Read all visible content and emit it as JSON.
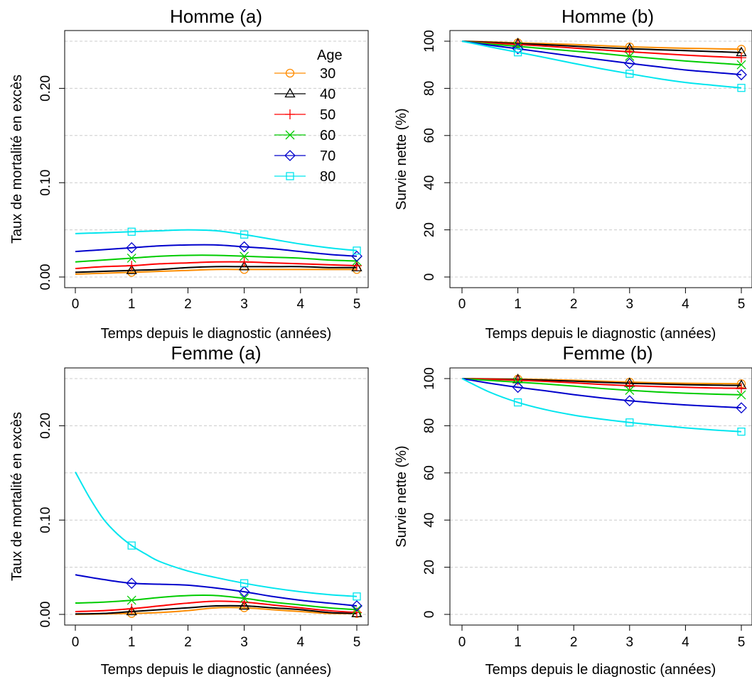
{
  "colors": {
    "30": "#ff8c00",
    "40": "#000000",
    "50": "#ff0000",
    "60": "#00cc00",
    "70": "#0000cc",
    "80": "#00e5ee"
  },
  "legend": {
    "title": "Age",
    "entries": [
      "30",
      "40",
      "50",
      "60",
      "70",
      "80"
    ]
  },
  "chart_data": [
    {
      "type": "line",
      "title": "Homme (a)",
      "xlabel": "Temps depuis le diagnostic (années)",
      "ylabel": "Taux de mortalité en excès",
      "xlim": [
        0,
        5
      ],
      "ylim": [
        0,
        0.25
      ],
      "xticks": [
        "0",
        "1",
        "2",
        "3",
        "4",
        "5"
      ],
      "yticks": [
        "0.00",
        "0.10",
        "0.20"
      ],
      "ytick_values": [
        0,
        0.1,
        0.2
      ],
      "grid_values": [
        0,
        0.05,
        0.1,
        0.15,
        0.2,
        0.25
      ],
      "legend_position": "top-right",
      "series": [
        {
          "name": "30",
          "marker": "circle",
          "x": [
            0,
            0.5,
            1,
            1.5,
            2,
            2.5,
            3,
            3.5,
            4,
            4.5,
            5
          ],
          "values": [
            0.003,
            0.004,
            0.005,
            0.006,
            0.007,
            0.008,
            0.008,
            0.008,
            0.008,
            0.008,
            0.008
          ],
          "marker_x": [
            1,
            3,
            5
          ]
        },
        {
          "name": "40",
          "marker": "triangle",
          "x": [
            0,
            0.5,
            1,
            1.5,
            2,
            2.5,
            3,
            3.5,
            4,
            4.5,
            5
          ],
          "values": [
            0.005,
            0.006,
            0.007,
            0.008,
            0.01,
            0.011,
            0.011,
            0.011,
            0.011,
            0.01,
            0.01
          ],
          "marker_x": [
            1,
            3,
            5
          ]
        },
        {
          "name": "50",
          "marker": "plus",
          "x": [
            0,
            0.5,
            1,
            1.5,
            2,
            2.5,
            3,
            3.5,
            4,
            4.5,
            5
          ],
          "values": [
            0.009,
            0.011,
            0.012,
            0.014,
            0.015,
            0.016,
            0.016,
            0.015,
            0.014,
            0.013,
            0.012
          ],
          "marker_x": [
            1,
            3,
            5
          ]
        },
        {
          "name": "60",
          "marker": "cross",
          "x": [
            0,
            0.5,
            1,
            1.5,
            2,
            2.5,
            3,
            3.5,
            4,
            4.5,
            5
          ],
          "values": [
            0.016,
            0.018,
            0.02,
            0.022,
            0.023,
            0.023,
            0.022,
            0.021,
            0.02,
            0.018,
            0.017
          ],
          "marker_x": [
            1,
            3,
            5
          ]
        },
        {
          "name": "70",
          "marker": "diamond",
          "x": [
            0,
            0.5,
            1,
            1.5,
            2,
            2.5,
            3,
            3.5,
            4,
            4.5,
            5
          ],
          "values": [
            0.027,
            0.029,
            0.031,
            0.033,
            0.034,
            0.034,
            0.032,
            0.03,
            0.027,
            0.024,
            0.022
          ],
          "marker_x": [
            1,
            3,
            5
          ]
        },
        {
          "name": "80",
          "marker": "square",
          "x": [
            0,
            0.5,
            1,
            1.5,
            2,
            2.5,
            3,
            3.5,
            4,
            4.5,
            5
          ],
          "values": [
            0.046,
            0.047,
            0.048,
            0.049,
            0.05,
            0.049,
            0.045,
            0.04,
            0.035,
            0.031,
            0.028
          ],
          "marker_x": [
            1,
            3,
            5
          ]
        }
      ]
    },
    {
      "type": "line",
      "title": "Homme  (b)",
      "xlabel": "Temps depuis le diagnostic (années)",
      "ylabel": "Survie nette (%)",
      "xlim": [
        0,
        5
      ],
      "ylim": [
        0,
        100
      ],
      "xticks": [
        "0",
        "1",
        "2",
        "3",
        "4",
        "5"
      ],
      "yticks": [
        "0",
        "20",
        "40",
        "60",
        "80",
        "100"
      ],
      "ytick_values": [
        0,
        20,
        40,
        60,
        80,
        100
      ],
      "grid_values": [
        0,
        20,
        40,
        60,
        80,
        100
      ],
      "series": [
        {
          "name": "30",
          "marker": "circle",
          "x": [
            0,
            0.5,
            1,
            1.5,
            2,
            2.5,
            3,
            3.5,
            4,
            4.5,
            5
          ],
          "values": [
            100,
            99.7,
            99.3,
            99,
            98.6,
            98.1,
            97.6,
            97.3,
            97,
            96.8,
            96.6
          ],
          "marker_x": [
            1,
            3,
            5
          ]
        },
        {
          "name": "40",
          "marker": "triangle",
          "x": [
            0,
            0.5,
            1,
            1.5,
            2,
            2.5,
            3,
            3.5,
            4,
            4.5,
            5
          ],
          "values": [
            100,
            99.5,
            99,
            98.5,
            97.9,
            97.3,
            96.8,
            96.4,
            96,
            95.6,
            95.2
          ],
          "marker_x": [
            1,
            3,
            5
          ]
        },
        {
          "name": "50",
          "marker": "plus",
          "x": [
            0,
            0.5,
            1,
            1.5,
            2,
            2.5,
            3,
            3.5,
            4,
            4.5,
            5
          ],
          "values": [
            100,
            99.2,
            98.6,
            97.9,
            97.1,
            96.3,
            95.5,
            94.8,
            94.1,
            93.5,
            93
          ],
          "marker_x": [
            1,
            3,
            5
          ]
        },
        {
          "name": "60",
          "marker": "cross",
          "x": [
            0,
            0.5,
            1,
            1.5,
            2,
            2.5,
            3,
            3.5,
            4,
            4.5,
            5
          ],
          "values": [
            100,
            98.8,
            97.8,
            96.8,
            95.8,
            94.8,
            93.6,
            92.6,
            91.6,
            90.8,
            90
          ],
          "marker_x": [
            1,
            3,
            5
          ]
        },
        {
          "name": "70",
          "marker": "diamond",
          "x": [
            0,
            0.5,
            1,
            1.5,
            2,
            2.5,
            3,
            3.5,
            4,
            4.5,
            5
          ],
          "values": [
            100,
            98.3,
            96.8,
            95.2,
            93.6,
            92.1,
            90.6,
            89.2,
            87.8,
            86.8,
            85.8
          ],
          "marker_x": [
            1,
            3,
            5
          ]
        },
        {
          "name": "80",
          "marker": "square",
          "x": [
            0,
            0.5,
            1,
            1.5,
            2,
            2.5,
            3,
            3.5,
            4,
            4.5,
            5
          ],
          "values": [
            100,
            97.6,
            95.3,
            93,
            90.6,
            88.3,
            86.2,
            84.2,
            82.5,
            81.3,
            80.2
          ],
          "marker_x": [
            1,
            3,
            5
          ]
        }
      ]
    },
    {
      "type": "line",
      "title": "Femme (a)",
      "xlabel": "Temps depuis le diagnostic (années)",
      "ylabel": "Taux de mortalité en excès",
      "xlim": [
        0,
        5
      ],
      "ylim": [
        0,
        0.25
      ],
      "xticks": [
        "0",
        "1",
        "2",
        "3",
        "4",
        "5"
      ],
      "yticks": [
        "0.00",
        "0.10",
        "0.20"
      ],
      "ytick_values": [
        0,
        0.1,
        0.2
      ],
      "grid_values": [
        0,
        0.05,
        0.1,
        0.15,
        0.2,
        0.25
      ],
      "series": [
        {
          "name": "30",
          "marker": "circle",
          "x": [
            0,
            0.5,
            1,
            1.5,
            2,
            2.5,
            3,
            3.5,
            4,
            4.5,
            5
          ],
          "values": [
            0.0,
            0.0005,
            0.001,
            0.002,
            0.004,
            0.007,
            0.007,
            0.005,
            0.003,
            0.001,
            0.001
          ],
          "marker_x": [
            1,
            3,
            5
          ]
        },
        {
          "name": "40",
          "marker": "triangle",
          "x": [
            0,
            0.5,
            1,
            1.5,
            2,
            2.5,
            3,
            3.5,
            4,
            4.5,
            5
          ],
          "values": [
            0.0005,
            0.001,
            0.003,
            0.005,
            0.007,
            0.009,
            0.009,
            0.007,
            0.005,
            0.002,
            0.001
          ],
          "marker_x": [
            1,
            3,
            5
          ]
        },
        {
          "name": "50",
          "marker": "plus",
          "x": [
            0,
            0.5,
            1,
            1.5,
            2,
            2.5,
            3,
            3.5,
            4,
            4.5,
            5
          ],
          "values": [
            0.003,
            0.004,
            0.006,
            0.009,
            0.012,
            0.014,
            0.013,
            0.01,
            0.007,
            0.004,
            0.002
          ],
          "marker_x": [
            1,
            3,
            5
          ]
        },
        {
          "name": "60",
          "marker": "cross",
          "x": [
            0,
            0.5,
            1,
            1.5,
            2,
            2.5,
            3,
            3.5,
            4,
            4.5,
            5
          ],
          "values": [
            0.012,
            0.013,
            0.015,
            0.018,
            0.02,
            0.02,
            0.017,
            0.013,
            0.01,
            0.007,
            0.005
          ],
          "marker_x": [
            1,
            3,
            5
          ]
        },
        {
          "name": "70",
          "marker": "diamond",
          "x": [
            0,
            0.5,
            1,
            1.5,
            2,
            2.5,
            3,
            3.5,
            4,
            4.5,
            5
          ],
          "values": [
            0.042,
            0.037,
            0.033,
            0.032,
            0.031,
            0.028,
            0.024,
            0.019,
            0.015,
            0.012,
            0.009
          ],
          "marker_x": [
            1,
            3,
            5
          ]
        },
        {
          "name": "80",
          "marker": "square",
          "x": [
            0,
            0.25,
            0.5,
            0.75,
            1,
            1.25,
            1.5,
            2,
            2.5,
            3,
            3.5,
            4,
            4.5,
            5
          ],
          "values": [
            0.151,
            0.124,
            0.101,
            0.085,
            0.073,
            0.064,
            0.056,
            0.046,
            0.039,
            0.033,
            0.028,
            0.024,
            0.021,
            0.019
          ],
          "marker_x": [
            1,
            3,
            5
          ]
        }
      ]
    },
    {
      "type": "line",
      "title": "Femme  (b)",
      "xlabel": "Temps depuis le diagnostic (années)",
      "ylabel": "Survie nette (%)",
      "xlim": [
        0,
        5
      ],
      "ylim": [
        0,
        100
      ],
      "xticks": [
        "0",
        "1",
        "2",
        "3",
        "4",
        "5"
      ],
      "yticks": [
        "0",
        "20",
        "40",
        "60",
        "80",
        "100"
      ],
      "ytick_values": [
        0,
        20,
        40,
        60,
        80,
        100
      ],
      "grid_values": [
        0,
        20,
        40,
        60,
        80,
        100
      ],
      "series": [
        {
          "name": "30",
          "marker": "circle",
          "x": [
            0,
            0.5,
            1,
            1.5,
            2,
            2.5,
            3,
            3.5,
            4,
            4.5,
            5
          ],
          "values": [
            100,
            99.9,
            99.8,
            99.6,
            99.3,
            98.9,
            98.5,
            98.2,
            98,
            97.9,
            97.8
          ],
          "marker_x": [
            1,
            3,
            5
          ]
        },
        {
          "name": "40",
          "marker": "triangle",
          "x": [
            0,
            0.5,
            1,
            1.5,
            2,
            2.5,
            3,
            3.5,
            4,
            4.5,
            5
          ],
          "values": [
            100,
            99.8,
            99.6,
            99.3,
            98.9,
            98.4,
            98,
            97.7,
            97.4,
            97.2,
            97.1
          ],
          "marker_x": [
            1,
            3,
            5
          ]
        },
        {
          "name": "50",
          "marker": "plus",
          "x": [
            0,
            0.5,
            1,
            1.5,
            2,
            2.5,
            3,
            3.5,
            4,
            4.5,
            5
          ],
          "values": [
            100,
            99.7,
            99.3,
            98.8,
            98.2,
            97.5,
            97,
            96.6,
            96.3,
            96,
            95.9
          ],
          "marker_x": [
            1,
            3,
            5
          ]
        },
        {
          "name": "60",
          "marker": "cross",
          "x": [
            0,
            0.5,
            1,
            1.5,
            2,
            2.5,
            3,
            3.5,
            4,
            4.5,
            5
          ],
          "values": [
            100,
            99.2,
            98.5,
            97.7,
            96.8,
            95.8,
            95,
            94.3,
            93.8,
            93.4,
            93.1
          ],
          "marker_x": [
            1,
            3,
            5
          ]
        },
        {
          "name": "70",
          "marker": "diamond",
          "x": [
            0,
            0.5,
            1,
            1.5,
            2,
            2.5,
            3,
            3.5,
            4,
            4.5,
            5
          ],
          "values": [
            100,
            98,
            96.3,
            94.8,
            93.2,
            91.8,
            90.6,
            89.6,
            88.8,
            88.2,
            87.6
          ],
          "marker_x": [
            1,
            3,
            5
          ]
        },
        {
          "name": "80",
          "marker": "square",
          "x": [
            0,
            0.5,
            1,
            1.5,
            2,
            2.5,
            3,
            3.5,
            4,
            4.5,
            5
          ],
          "values": [
            100,
            94.2,
            89.9,
            86.8,
            84.5,
            82.8,
            81.4,
            80.2,
            79.1,
            78.2,
            77.5
          ],
          "marker_x": [
            1,
            3,
            5
          ]
        }
      ]
    }
  ]
}
